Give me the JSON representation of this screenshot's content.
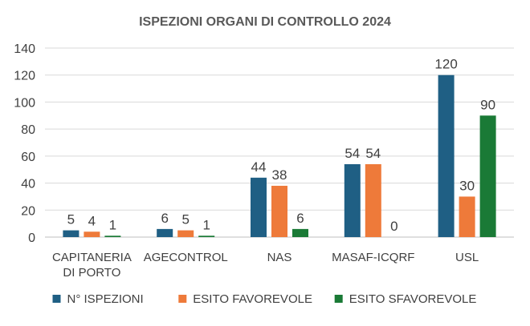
{
  "chart_data": {
    "type": "bar",
    "title": "ISPEZIONI ORGANI DI CONTROLLO 2024",
    "categories": [
      [
        "CAPITANERIA",
        "DI PORTO"
      ],
      [
        "AGECONTROL"
      ],
      [
        "NAS"
      ],
      [
        "MASAF-ICQRF"
      ],
      [
        "USL"
      ]
    ],
    "series": [
      {
        "name": "N° ISPEZIONI",
        "color": "#1f5f84",
        "values": [
          5,
          6,
          44,
          54,
          120
        ]
      },
      {
        "name": "ESITO FAVOREVOLE",
        "color": "#ee7a3a",
        "values": [
          4,
          5,
          38,
          54,
          30
        ]
      },
      {
        "name": "ESITO SFAVOREVOLE",
        "color": "#1a7a36",
        "values": [
          1,
          1,
          6,
          0,
          90
        ]
      }
    ],
    "ylim": [
      0,
      140
    ],
    "yticks": [
      0,
      20,
      40,
      60,
      80,
      100,
      120,
      140
    ],
    "grid": true,
    "legend": "bottom",
    "data_labels": true
  }
}
